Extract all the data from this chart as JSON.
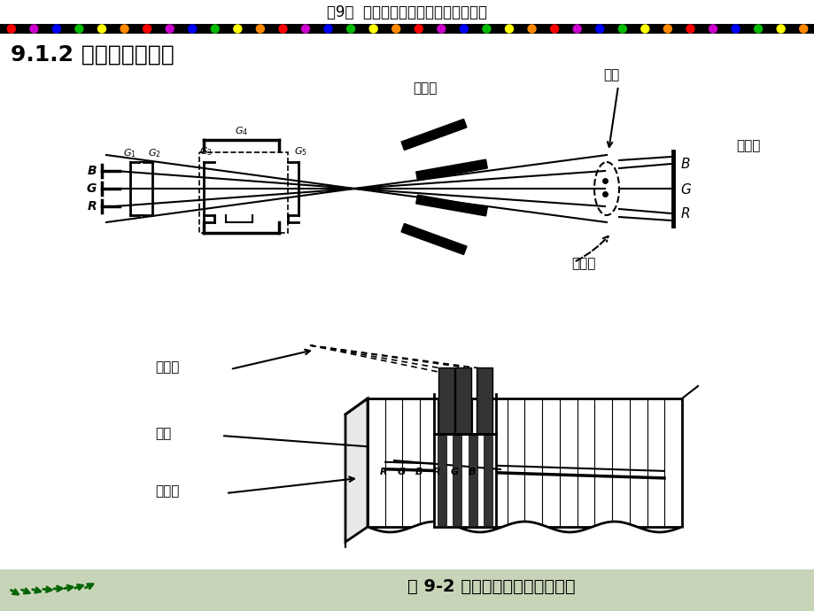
{
  "title_header": "第9章  彩色显像管的结构及其附属电路",
  "section_title": "9.1.2 单枪三束栅网管",
  "caption": "图 9-2 单枪三束显像管工作原理",
  "bg_color": "#f5f5f0",
  "header_bg": "#ffffff",
  "footer_bg": "#c8d4b8"
}
